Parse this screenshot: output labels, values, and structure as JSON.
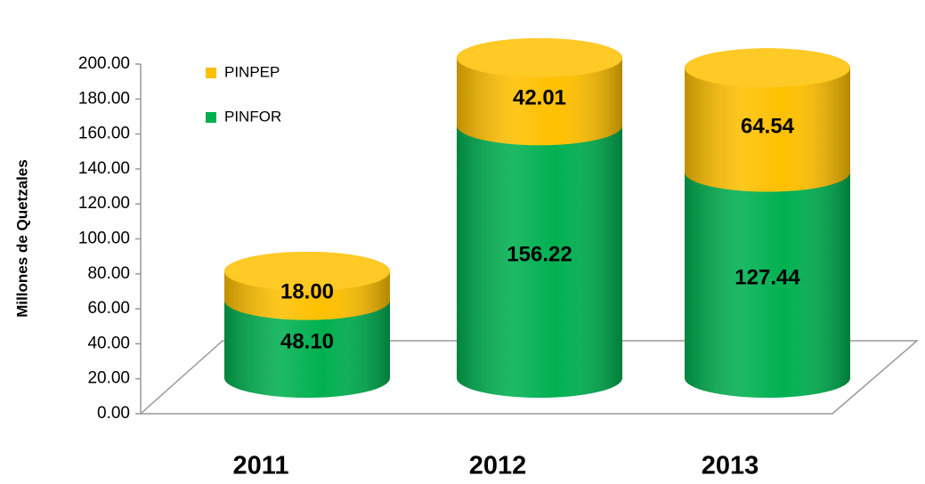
{
  "chart_data": {
    "type": "bar3d_stacked",
    "y_label": "Millones de Quetzales",
    "categories": [
      "2011",
      "2012",
      "2013"
    ],
    "series": [
      {
        "name": "PINFOR",
        "color": "#00B050",
        "values": [
          48.1,
          156.22,
          127.44
        ],
        "value_labels": [
          "48.10",
          "156.22",
          "127.44"
        ]
      },
      {
        "name": "PINPEP",
        "color": "#FFC000",
        "values": [
          18,
          42.01,
          64.54
        ],
        "value_labels": [
          "18.00",
          "42.01",
          "64.54"
        ]
      }
    ],
    "ylim": [
      0,
      200
    ],
    "yticks": [
      {
        "value": 0,
        "label": "0.00"
      },
      {
        "value": 20,
        "label": "20.00"
      },
      {
        "value": 40,
        "label": "40.00"
      },
      {
        "value": 60,
        "label": "60.00"
      },
      {
        "value": 80,
        "label": "80.00"
      },
      {
        "value": 100,
        "label": "100.00"
      },
      {
        "value": 120,
        "label": "120.00"
      },
      {
        "value": 140,
        "label": "140.00"
      },
      {
        "value": 160,
        "label": "160.00"
      },
      {
        "value": 180,
        "label": "180.00"
      },
      {
        "value": 200,
        "label": "200.00"
      }
    ],
    "legend": "top-left"
  }
}
